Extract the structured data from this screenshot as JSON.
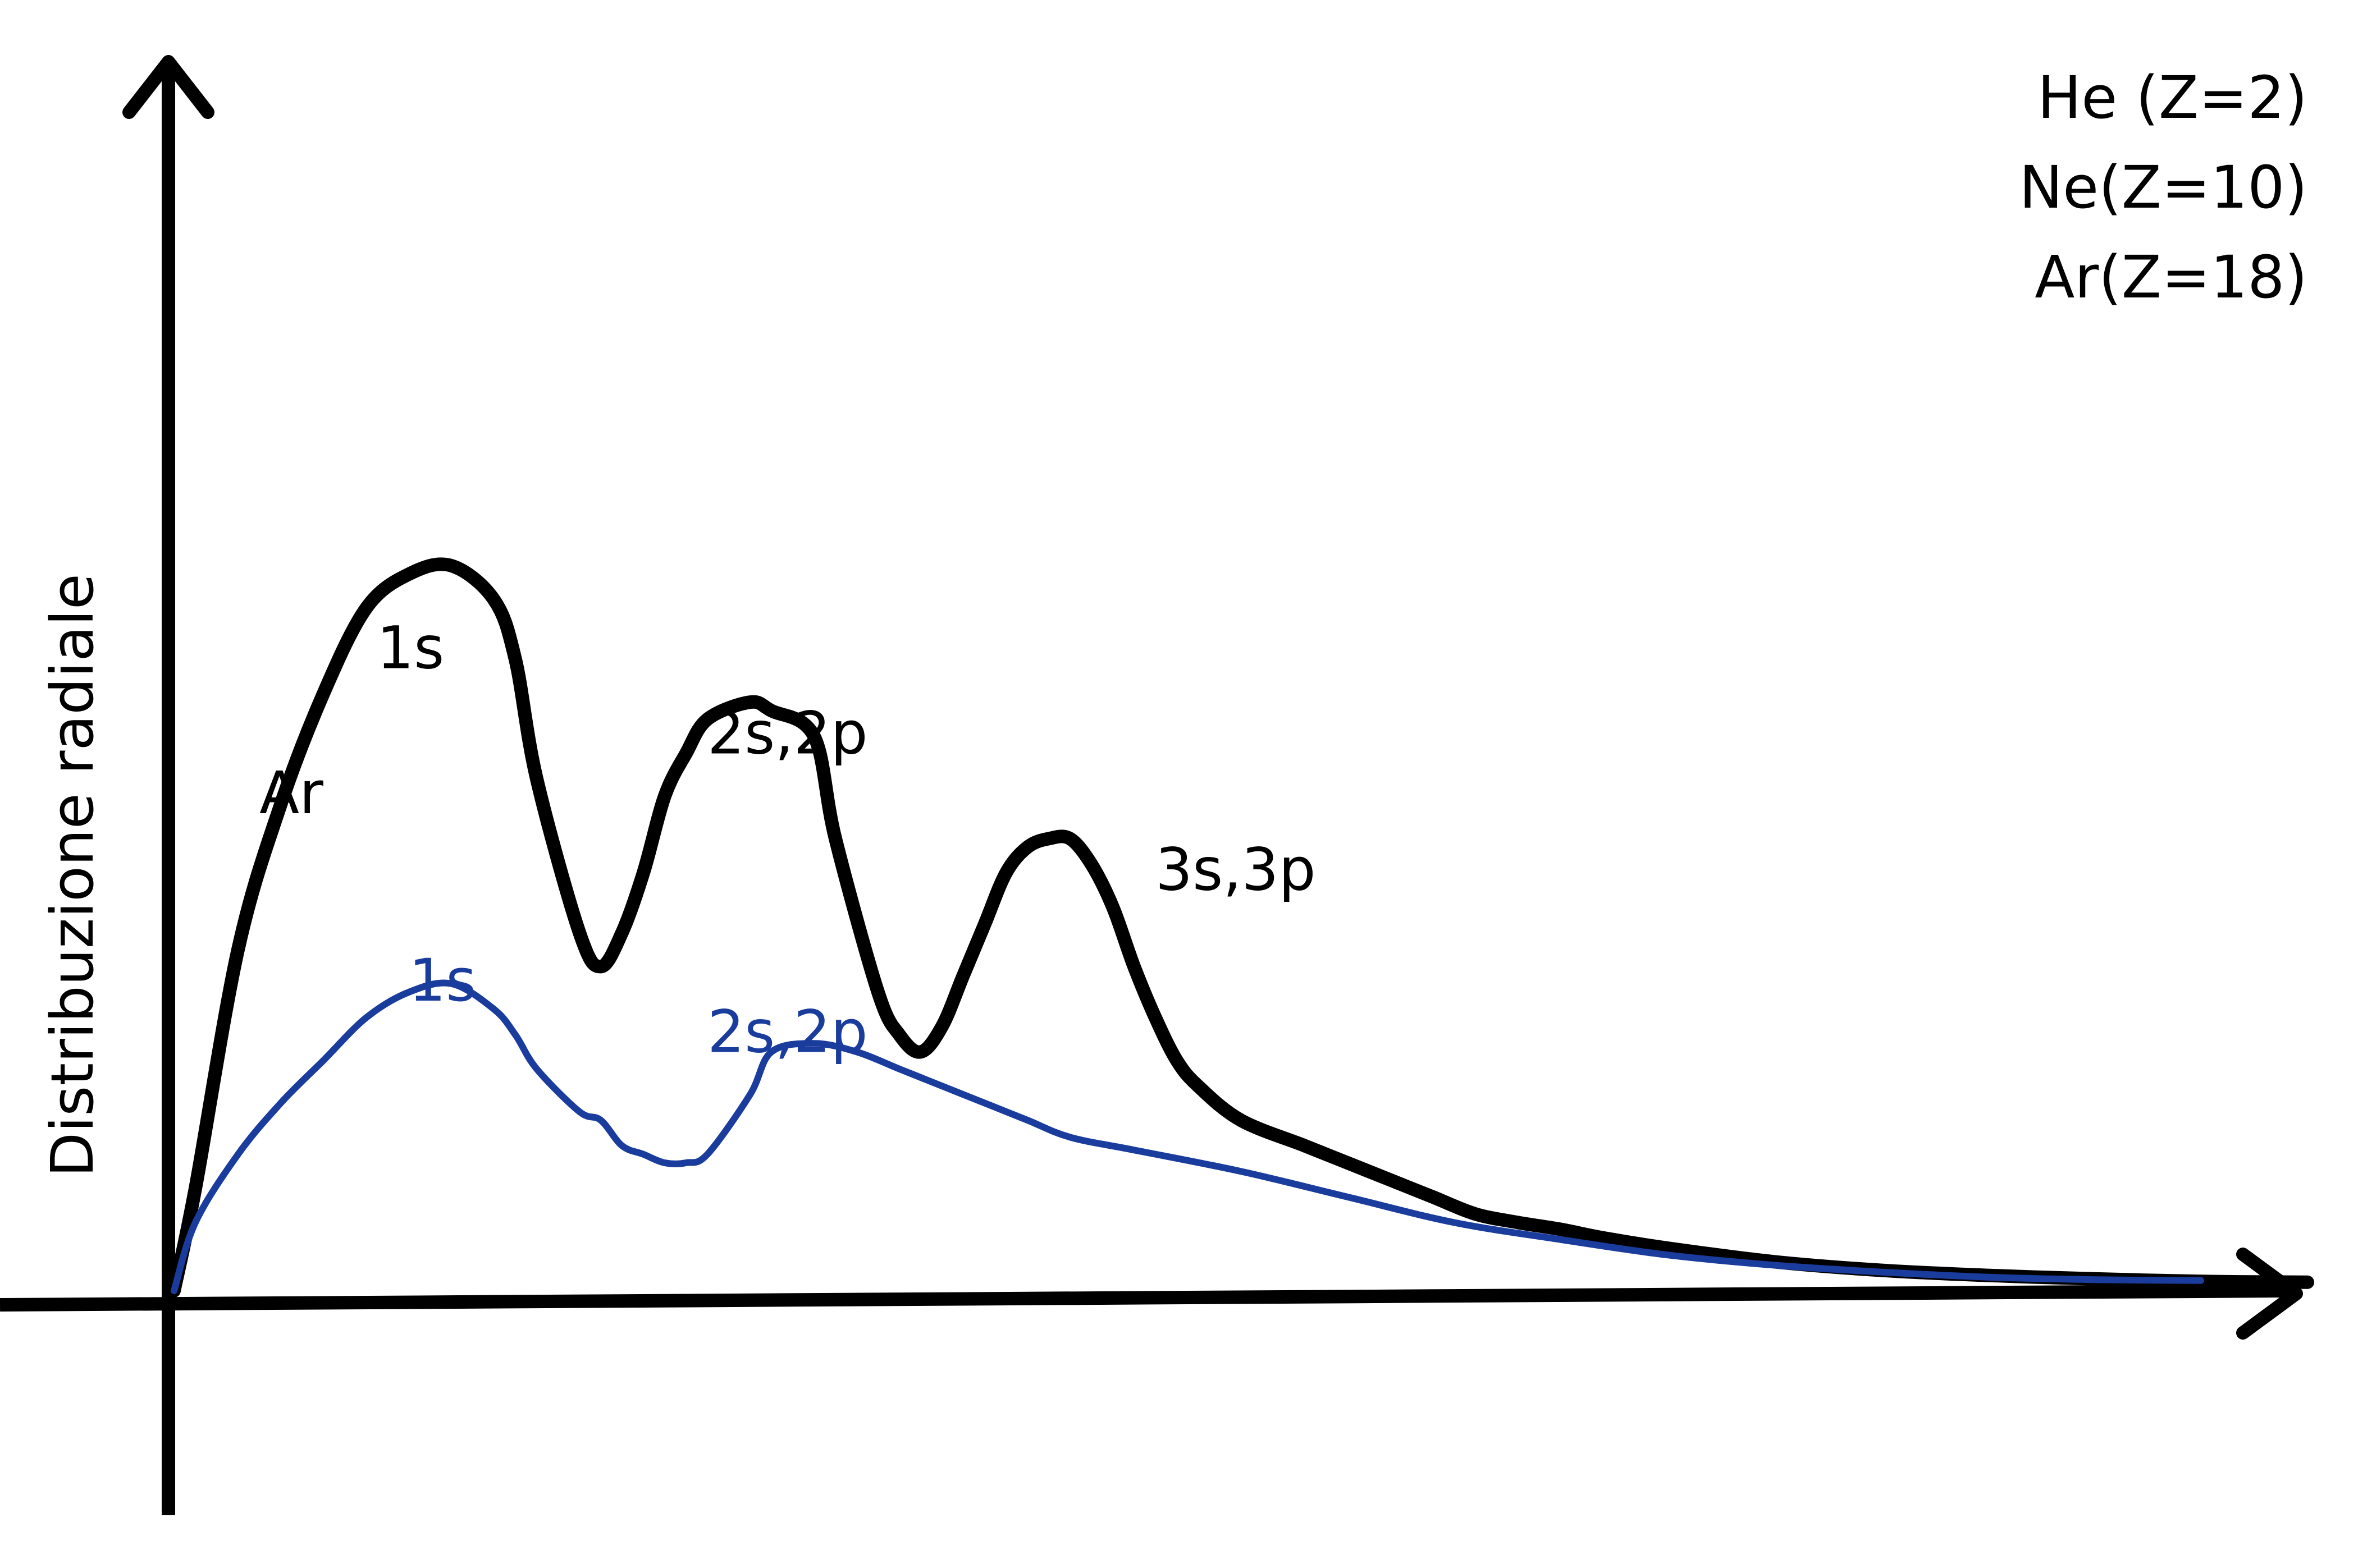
{
  "chart_data": {
    "type": "line",
    "title": "",
    "xlabel": "",
    "ylabel": "Distribuzione radiale",
    "xlim": [
      0,
      100
    ],
    "ylim": [
      0,
      100
    ],
    "grid": false,
    "legend": {
      "placement": "top-right",
      "entries": [
        "He (Z=2)",
        "Ne(Z=10)",
        "Ar(Z=18)"
      ]
    },
    "series": [
      {
        "name": "Ar",
        "color": "#000000",
        "x": [
          0,
          1,
          3,
          5,
          7,
          9,
          11,
          13,
          15,
          16,
          17,
          19,
          20,
          21,
          22,
          23,
          24,
          25,
          27,
          28,
          30,
          31,
          33,
          34,
          35,
          36,
          37,
          38,
          39,
          40,
          41,
          42,
          43,
          44,
          45,
          46,
          47,
          48,
          50,
          53,
          55,
          57,
          59,
          61,
          63,
          65,
          67,
          70,
          75,
          80,
          85,
          90,
          95,
          100
        ],
        "y": [
          0,
          12,
          40,
          57,
          70,
          80,
          84,
          85,
          81,
          74,
          60,
          42,
          38,
          42,
          49,
          58,
          63,
          67,
          69,
          68,
          65,
          53,
          35,
          30,
          28,
          31,
          37,
          43,
          49,
          52,
          53,
          53,
          50,
          45,
          38,
          32,
          27,
          24,
          20,
          17,
          15,
          13,
          11,
          9,
          8,
          7.2,
          6.2,
          5,
          3.4,
          2.4,
          1.8,
          1.4,
          1.1,
          1
        ]
      },
      {
        "name": "",
        "color": "#1a3c9c",
        "x": [
          0,
          1,
          3,
          5,
          7,
          9,
          11,
          13,
          15,
          16,
          17,
          19,
          20,
          21,
          22,
          23,
          24,
          25,
          27,
          28,
          30,
          32,
          34,
          36,
          38,
          40,
          42,
          45,
          50,
          55,
          60,
          65,
          70,
          75,
          80,
          85,
          90,
          95
        ],
        "y": [
          0,
          8,
          16,
          22,
          27,
          32,
          35,
          36,
          33,
          30,
          26,
          21,
          20,
          17,
          16,
          15,
          15,
          16,
          23,
          28,
          29,
          28,
          26,
          24,
          22,
          20,
          18,
          16.5,
          14,
          11,
          8,
          6,
          4.2,
          3,
          2.2,
          1.6,
          1.3,
          1.2
        ]
      }
    ],
    "annotations": [
      {
        "series": 0,
        "text": "Ar",
        "x": 4,
        "y": 56
      },
      {
        "series": 0,
        "text": "1s",
        "x": 9.5,
        "y": 73
      },
      {
        "series": 0,
        "text": "2s,2p",
        "x": 25,
        "y": 63
      },
      {
        "series": 0,
        "text": "3s,3p",
        "x": 46,
        "y": 47
      },
      {
        "series": 1,
        "text": "1s",
        "x": 11,
        "y": 34
      },
      {
        "series": 1,
        "text": "2s,2p",
        "x": 25,
        "y": 28
      }
    ]
  }
}
